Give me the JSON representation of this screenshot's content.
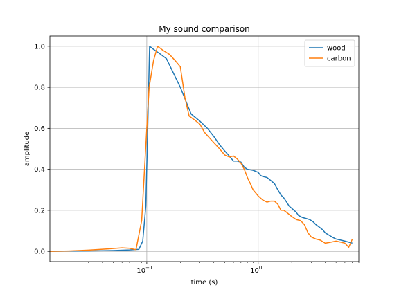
{
  "chart_data": {
    "type": "line",
    "title": "My sound comparison",
    "xlabel": "time (s)",
    "ylabel": "amplitude",
    "xscale": "log",
    "xlim": [
      0.0135,
      8.0
    ],
    "ylim": [
      -0.05,
      1.05
    ],
    "grid": true,
    "legend_position": "upper right",
    "xticks": [
      {
        "value": 0.1,
        "label": "10",
        "exp": "−1"
      },
      {
        "value": 1.0,
        "label": "10",
        "exp": "0"
      }
    ],
    "yticks": [
      {
        "value": 0.0,
        "label": "0.0"
      },
      {
        "value": 0.2,
        "label": "0.2"
      },
      {
        "value": 0.4,
        "label": "0.4"
      },
      {
        "value": 0.6,
        "label": "0.6"
      },
      {
        "value": 0.8,
        "label": "0.8"
      },
      {
        "value": 1.0,
        "label": "1.0"
      }
    ],
    "series": [
      {
        "name": "wood",
        "color": "#1f77b4",
        "x": [
          0.0135,
          0.02,
          0.03,
          0.05,
          0.07,
          0.085,
          0.092,
          0.098,
          0.102,
          0.106,
          0.115,
          0.13,
          0.15,
          0.2,
          0.25,
          0.3,
          0.35,
          0.4,
          0.45,
          0.5,
          0.55,
          0.6,
          0.65,
          0.7,
          0.75,
          0.8,
          0.9,
          1.0,
          1.05,
          1.1,
          1.2,
          1.3,
          1.4,
          1.5,
          1.6,
          1.7,
          1.8,
          1.9,
          2.0,
          2.1,
          2.2,
          2.3,
          2.5,
          2.7,
          2.9,
          3.1,
          3.3,
          3.5,
          3.8,
          4.0,
          4.3,
          4.6,
          5.0,
          5.5,
          6.0,
          6.5,
          7.0
        ],
        "y": [
          0.0,
          0.001,
          0.002,
          0.004,
          0.007,
          0.01,
          0.05,
          0.22,
          0.6,
          1.0,
          0.985,
          0.965,
          0.94,
          0.8,
          0.67,
          0.635,
          0.6,
          0.56,
          0.52,
          0.49,
          0.465,
          0.44,
          0.44,
          0.435,
          0.41,
          0.4,
          0.395,
          0.385,
          0.37,
          0.365,
          0.36,
          0.345,
          0.33,
          0.3,
          0.275,
          0.26,
          0.24,
          0.22,
          0.21,
          0.2,
          0.19,
          0.175,
          0.165,
          0.16,
          0.155,
          0.145,
          0.13,
          0.12,
          0.105,
          0.09,
          0.08,
          0.07,
          0.06,
          0.055,
          0.05,
          0.045,
          0.04
        ]
      },
      {
        "name": "carbon",
        "color": "#ff7f0e",
        "x": [
          0.0135,
          0.02,
          0.03,
          0.045,
          0.06,
          0.07,
          0.08,
          0.09,
          0.1,
          0.105,
          0.115,
          0.125,
          0.14,
          0.16,
          0.18,
          0.2,
          0.22,
          0.24,
          0.27,
          0.3,
          0.33,
          0.37,
          0.4,
          0.45,
          0.5,
          0.55,
          0.6,
          0.65,
          0.7,
          0.75,
          0.8,
          0.85,
          0.9,
          1.0,
          1.1,
          1.2,
          1.3,
          1.4,
          1.5,
          1.6,
          1.7,
          1.8,
          2.0,
          2.2,
          2.4,
          2.6,
          2.8,
          3.0,
          3.3,
          3.6,
          4.0,
          4.5,
          5.0,
          5.5,
          6.0,
          6.5,
          7.0
        ],
        "y": [
          0.0,
          0.002,
          0.006,
          0.012,
          0.017,
          0.015,
          0.008,
          0.15,
          0.6,
          0.8,
          0.93,
          1.0,
          0.98,
          0.96,
          0.93,
          0.9,
          0.75,
          0.66,
          0.64,
          0.62,
          0.58,
          0.55,
          0.53,
          0.5,
          0.47,
          0.46,
          0.465,
          0.45,
          0.43,
          0.4,
          0.36,
          0.33,
          0.3,
          0.27,
          0.25,
          0.24,
          0.245,
          0.245,
          0.23,
          0.2,
          0.2,
          0.19,
          0.17,
          0.155,
          0.15,
          0.13,
          0.09,
          0.07,
          0.06,
          0.055,
          0.04,
          0.045,
          0.05,
          0.045,
          0.04,
          0.02,
          0.06
        ]
      }
    ]
  }
}
